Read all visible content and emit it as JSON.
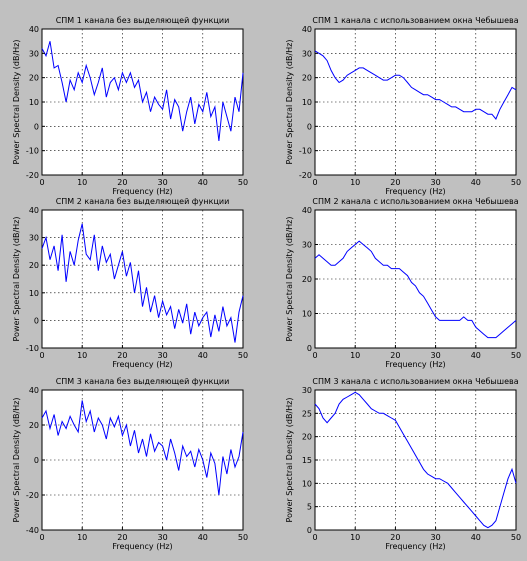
{
  "chart_data": [
    {
      "type": "line",
      "title": "СПМ 1 канала без выделяющей функции",
      "xlabel": "Frequency (Hz)",
      "ylabel": "Power Spectral Density (dB/Hz)",
      "xlim": [
        0,
        50
      ],
      "ylim": [
        -20,
        40
      ],
      "xticks": [
        0,
        10,
        20,
        30,
        40,
        50
      ],
      "yticks": [
        -20,
        -10,
        0,
        10,
        20,
        30,
        40
      ],
      "grid": true,
      "color": "#0000ff",
      "series": [
        {
          "x": [
            0,
            1,
            2,
            3,
            4,
            5,
            6,
            7,
            8,
            9,
            10,
            11,
            12,
            13,
            14,
            15,
            16,
            17,
            18,
            19,
            20,
            21,
            22,
            23,
            24,
            25,
            26,
            27,
            28,
            29,
            30,
            31,
            32,
            33,
            34,
            35,
            36,
            37,
            38,
            39,
            40,
            41,
            42,
            43,
            44,
            45,
            46,
            47,
            48,
            49,
            50
          ],
          "values": [
            32,
            29,
            35,
            24,
            25,
            18,
            10,
            19,
            15,
            22,
            18,
            25,
            20,
            13,
            18,
            24,
            12,
            18,
            20,
            15,
            22,
            18,
            22,
            16,
            19,
            10,
            14,
            6,
            12,
            9,
            7,
            15,
            3,
            11,
            8,
            -2,
            6,
            12,
            1,
            9,
            6,
            14,
            4,
            8,
            -6,
            10,
            4,
            -2,
            12,
            6,
            22
          ]
        }
      ]
    },
    {
      "type": "line",
      "title": "СПМ 1 канала с использованием окна Чебышева",
      "xlabel": "Frequency (Hz)",
      "ylabel": "Power Spectral Density (dB/Hz)",
      "xlim": [
        0,
        50
      ],
      "ylim": [
        -20,
        40
      ],
      "xticks": [
        0,
        10,
        20,
        30,
        40,
        50
      ],
      "yticks": [
        -20,
        -10,
        0,
        10,
        20,
        30,
        40
      ],
      "grid": true,
      "color": "#0000ff",
      "series": [
        {
          "x": [
            0,
            1,
            2,
            3,
            4,
            5,
            6,
            7,
            8,
            9,
            10,
            11,
            12,
            13,
            14,
            15,
            16,
            17,
            18,
            19,
            20,
            21,
            22,
            23,
            24,
            25,
            26,
            27,
            28,
            29,
            30,
            31,
            32,
            33,
            34,
            35,
            36,
            37,
            38,
            39,
            40,
            41,
            42,
            43,
            44,
            45,
            46,
            47,
            48,
            49,
            50
          ],
          "values": [
            31,
            30,
            29,
            27,
            23,
            20,
            18,
            19,
            21,
            22,
            23,
            24,
            24,
            23,
            22,
            21,
            20,
            19,
            19,
            20,
            21,
            21,
            20,
            18,
            16,
            15,
            14,
            13,
            13,
            12,
            11,
            11,
            10,
            9,
            8,
            8,
            7,
            6,
            6,
            6,
            7,
            7,
            6,
            5,
            5,
            3,
            7,
            10,
            13,
            16,
            15
          ]
        }
      ]
    },
    {
      "type": "line",
      "title": "СПМ 2 канала без выделяющей функции",
      "xlabel": "Frequency (Hz)",
      "ylabel": "Power Spectral Density (dB/Hz)",
      "xlim": [
        0,
        50
      ],
      "ylim": [
        -10,
        40
      ],
      "xticks": [
        0,
        10,
        20,
        30,
        40,
        50
      ],
      "yticks": [
        -10,
        0,
        10,
        20,
        30,
        40
      ],
      "grid": true,
      "color": "#0000ff",
      "series": [
        {
          "x": [
            0,
            1,
            2,
            3,
            4,
            5,
            6,
            7,
            8,
            9,
            10,
            11,
            12,
            13,
            14,
            15,
            16,
            17,
            18,
            19,
            20,
            21,
            22,
            23,
            24,
            25,
            26,
            27,
            28,
            29,
            30,
            31,
            32,
            33,
            34,
            35,
            36,
            37,
            38,
            39,
            40,
            41,
            42,
            43,
            44,
            45,
            46,
            47,
            48,
            49,
            50
          ],
          "values": [
            26,
            30,
            22,
            27,
            18,
            31,
            14,
            25,
            20,
            29,
            35,
            24,
            22,
            31,
            18,
            27,
            21,
            24,
            15,
            20,
            25,
            16,
            21,
            10,
            18,
            5,
            12,
            3,
            9,
            1,
            7,
            2,
            5,
            -3,
            4,
            -1,
            6,
            -5,
            3,
            -2,
            1,
            3,
            -6,
            2,
            -4,
            5,
            -2,
            1,
            -8,
            3,
            9
          ]
        }
      ]
    },
    {
      "type": "line",
      "title": "СПМ 2 канала с использованием окна Чебышева",
      "xlabel": "Frequency (Hz)",
      "ylabel": "Power Spectral Density (dB/Hz)",
      "xlim": [
        0,
        50
      ],
      "ylim": [
        0,
        40
      ],
      "xticks": [
        0,
        10,
        20,
        30,
        40,
        50
      ],
      "yticks": [
        0,
        10,
        20,
        30,
        40
      ],
      "grid": true,
      "color": "#0000ff",
      "series": [
        {
          "x": [
            0,
            1,
            2,
            3,
            4,
            5,
            6,
            7,
            8,
            9,
            10,
            11,
            12,
            13,
            14,
            15,
            16,
            17,
            18,
            19,
            20,
            21,
            22,
            23,
            24,
            25,
            26,
            27,
            28,
            29,
            30,
            31,
            32,
            33,
            34,
            35,
            36,
            37,
            38,
            39,
            40,
            41,
            42,
            43,
            44,
            45,
            46,
            47,
            48,
            49,
            50
          ],
          "values": [
            26,
            27,
            26,
            25,
            24,
            24,
            25,
            26,
            28,
            29,
            30,
            31,
            30,
            29,
            28,
            26,
            25,
            24,
            24,
            23,
            23,
            23,
            22,
            21,
            19,
            18,
            16,
            15,
            13,
            11,
            9,
            8,
            8,
            8,
            8,
            8,
            8,
            9,
            8,
            8,
            6,
            5,
            4,
            3,
            3,
            3,
            4,
            5,
            6,
            7,
            8
          ]
        }
      ]
    },
    {
      "type": "line",
      "title": "СПМ 3 канала без выделяющей функции",
      "xlabel": "Frequency (Hz)",
      "ylabel": "Power Spectral Density (dB/Hz)",
      "xlim": [
        0,
        50
      ],
      "ylim": [
        -40,
        40
      ],
      "xticks": [
        0,
        10,
        20,
        30,
        40,
        50
      ],
      "yticks": [
        -40,
        -20,
        0,
        20,
        40
      ],
      "grid": true,
      "color": "#0000ff",
      "series": [
        {
          "x": [
            0,
            1,
            2,
            3,
            4,
            5,
            6,
            7,
            8,
            9,
            10,
            11,
            12,
            13,
            14,
            15,
            16,
            17,
            18,
            19,
            20,
            21,
            22,
            23,
            24,
            25,
            26,
            27,
            28,
            29,
            30,
            31,
            32,
            33,
            34,
            35,
            36,
            37,
            38,
            39,
            40,
            41,
            42,
            43,
            44,
            45,
            46,
            47,
            48,
            49,
            50
          ],
          "values": [
            24,
            28,
            18,
            26,
            14,
            22,
            18,
            25,
            20,
            16,
            34,
            22,
            28,
            16,
            24,
            20,
            12,
            24,
            19,
            25,
            14,
            20,
            8,
            17,
            4,
            12,
            2,
            15,
            5,
            10,
            8,
            0,
            12,
            4,
            -6,
            8,
            2,
            5,
            -4,
            6,
            0,
            -10,
            4,
            -2,
            -20,
            2,
            -8,
            6,
            -4,
            2,
            16
          ]
        }
      ]
    },
    {
      "type": "line",
      "title": "СПМ 3 канала с использованием окна Чебышева",
      "xlabel": "Frequency (Hz)",
      "ylabel": "Power Spectral Density (dB/Hz)",
      "xlim": [
        0,
        50
      ],
      "ylim": [
        0,
        30
      ],
      "xticks": [
        0,
        10,
        20,
        30,
        40,
        50
      ],
      "yticks": [
        0,
        5,
        10,
        15,
        20,
        25,
        30
      ],
      "grid": true,
      "color": "#0000ff",
      "series": [
        {
          "x": [
            0,
            1,
            2,
            3,
            4,
            5,
            6,
            7,
            8,
            9,
            10,
            11,
            12,
            13,
            14,
            15,
            16,
            17,
            18,
            19,
            20,
            21,
            22,
            23,
            24,
            25,
            26,
            27,
            28,
            29,
            30,
            31,
            32,
            33,
            34,
            35,
            36,
            37,
            38,
            39,
            40,
            41,
            42,
            43,
            44,
            45,
            46,
            47,
            48,
            49,
            50
          ],
          "values": [
            27,
            26,
            24,
            23,
            24,
            25,
            27,
            28,
            28.5,
            29,
            29.5,
            29,
            28,
            27,
            26,
            25.5,
            25,
            25,
            24.5,
            24,
            23.5,
            22,
            20.5,
            19,
            17.5,
            16,
            14.5,
            13,
            12,
            11.5,
            11,
            11,
            10.5,
            10,
            9,
            8,
            7,
            6,
            5,
            4,
            3,
            2,
            1,
            0.5,
            1,
            2,
            5,
            8,
            11,
            13,
            10
          ]
        }
      ]
    }
  ]
}
